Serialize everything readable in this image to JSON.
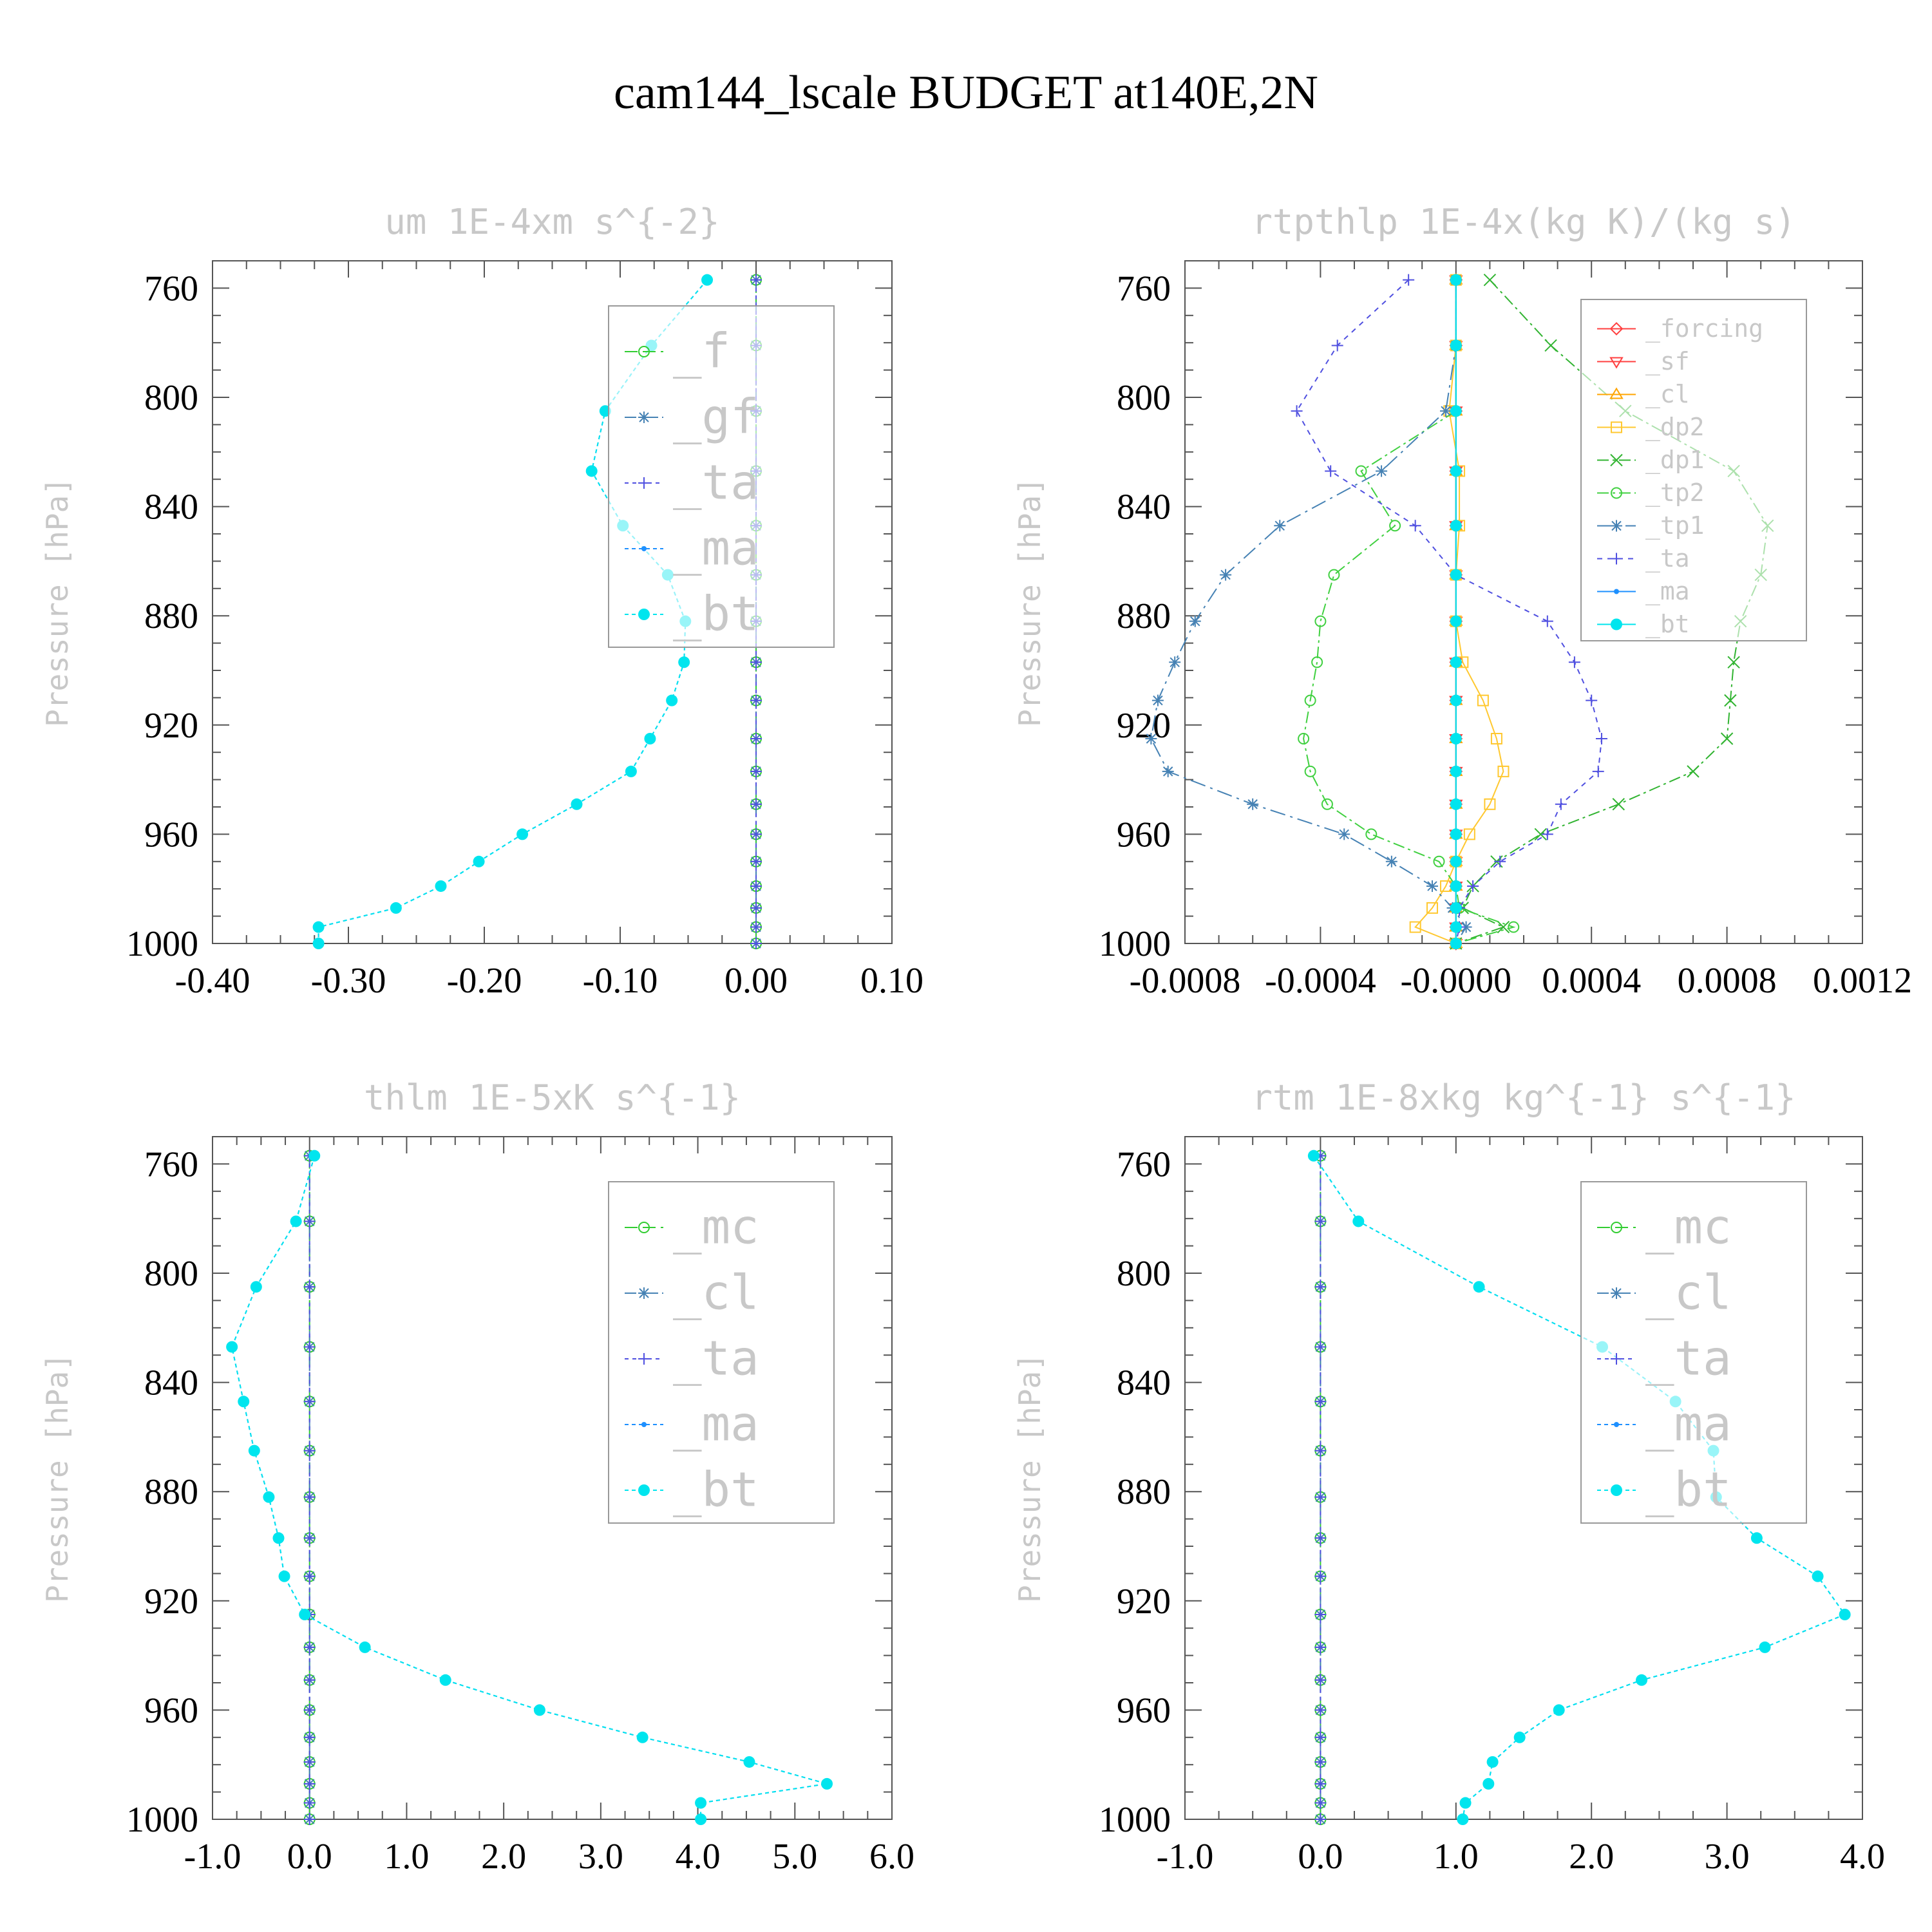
{
  "title": "cam144_lscale  BUDGET at140E,2N",
  "chart_data": [
    {
      "type": "line",
      "title": "um  1E-4xm s^{-2}",
      "ylabel": "Pressure [hPa]",
      "xlim": [
        -0.4,
        0.1
      ],
      "ylim": [
        1000,
        750
      ],
      "xticks": [
        "-0.40",
        "-0.30",
        "-0.20",
        "-0.10",
        "0.00",
        "0.10"
      ],
      "xtick_values": [
        -0.4,
        -0.3,
        -0.2,
        -0.1,
        0.0,
        0.1
      ],
      "yticks": [
        "760",
        "800",
        "840",
        "880",
        "920",
        "960",
        "1000"
      ],
      "legend": "top-right",
      "levels": [
        757,
        781,
        805,
        827,
        847,
        865,
        882,
        897,
        911,
        925,
        937,
        949,
        960,
        970,
        979,
        987,
        994,
        1000
      ],
      "series": [
        {
          "name": "_f",
          "color": "#32cd32",
          "marker": "circle-open",
          "dash": "20 8",
          "values": [
            0,
            0,
            0,
            0,
            0,
            0,
            0,
            0,
            0,
            0,
            0,
            0,
            0,
            0,
            0,
            0,
            0,
            0
          ]
        },
        {
          "name": "_gf",
          "color": "#4682b4",
          "marker": "star",
          "dash": "18 6 4 6",
          "values": [
            0,
            0,
            0,
            0,
            0,
            0,
            0,
            0,
            0,
            0,
            0,
            0,
            0,
            0,
            0,
            0,
            0,
            0
          ]
        },
        {
          "name": "_ta",
          "color": "#5050e0",
          "marker": "plus",
          "dash": "6 6",
          "values": [
            0,
            0,
            0,
            0,
            0,
            0,
            0,
            0,
            0,
            0,
            0,
            0,
            0,
            0,
            0,
            0,
            0,
            0.0
          ]
        },
        {
          "name": "_ma",
          "color": "#1e90ff",
          "marker": "dot",
          "dash": "6 5",
          "values": [
            -0.036,
            -0.077,
            -0.111,
            -0.121,
            -0.098,
            -0.065,
            -0.052,
            -0.053,
            -0.062,
            -0.078,
            -0.092,
            -0.132,
            -0.172,
            -0.204,
            -0.232,
            -0.265,
            -0.322,
            -0.322
          ]
        },
        {
          "name": "_bt",
          "color": "#00e5ee",
          "marker": "filled",
          "dash": "6 5",
          "values": [
            -0.036,
            -0.077,
            -0.111,
            -0.121,
            -0.098,
            -0.065,
            -0.052,
            -0.053,
            -0.062,
            -0.078,
            -0.092,
            -0.132,
            -0.172,
            -0.204,
            -0.232,
            -0.265,
            -0.322,
            -0.322
          ]
        }
      ]
    },
    {
      "type": "line",
      "title": "rtpthlp  1E-4x(kg K)/(kg s)",
      "ylabel": "Pressure [hPa]",
      "xlim": [
        -0.0008,
        0.0012
      ],
      "ylim": [
        1000,
        750
      ],
      "xticks": [
        "-0.0008",
        "-0.0004",
        "-0.0000",
        "0.0004",
        "0.0008",
        "0.0012"
      ],
      "xtick_values": [
        -0.0008,
        -0.0004,
        0.0,
        0.0004,
        0.0008,
        0.0012
      ],
      "yticks": [
        "760",
        "800",
        "840",
        "880",
        "920",
        "960",
        "1000"
      ],
      "legend": "top-right",
      "levels": [
        757,
        781,
        805,
        827,
        847,
        865,
        882,
        897,
        911,
        925,
        937,
        949,
        960,
        970,
        979,
        987,
        994,
        1000
      ],
      "series": [
        {
          "name": "_forcing",
          "color": "#ff4040",
          "marker": "diamond",
          "dash": "",
          "values": [
            0,
            0,
            0,
            0,
            0,
            0,
            0,
            0,
            0,
            0,
            0,
            0,
            0,
            0,
            0,
            0,
            0,
            0
          ]
        },
        {
          "name": "_sf",
          "color": "#ff4040",
          "marker": "triangle-down",
          "dash": "",
          "values": [
            0,
            0,
            0,
            0,
            0,
            0,
            0,
            0,
            0,
            0,
            0,
            0,
            0,
            0,
            0,
            0,
            0,
            0
          ]
        },
        {
          "name": "_cl",
          "color": "#ffa500",
          "marker": "triangle-up",
          "dash": "",
          "values": [
            0,
            0,
            0,
            0,
            0,
            0,
            0,
            0,
            0,
            0,
            0,
            0,
            0,
            0,
            0,
            0,
            0,
            0
          ]
        },
        {
          "name": "_dp2",
          "color": "#ffc830",
          "marker": "square",
          "dash": "",
          "values": [
            0,
            0,
            -2e-05,
            1e-05,
            1e-05,
            0,
            0,
            2e-05,
            8e-05,
            0.00012,
            0.00014,
            0.0001,
            4e-05,
            0,
            -3e-05,
            -7e-05,
            -0.00012,
            0
          ]
        },
        {
          "name": "_dp1",
          "color": "#32b432",
          "marker": "cross",
          "dash": "18 6 4 6",
          "values": [
            0.0001,
            0.00028,
            0.0005,
            0.00082,
            0.00092,
            0.0009,
            0.00084,
            0.00082,
            0.00081,
            0.0008,
            0.0007,
            0.00048,
            0.00025,
            0.00012,
            5e-05,
            2e-05,
            0.00014,
            0
          ]
        },
        {
          "name": "_tp2",
          "color": "#40d040",
          "marker": "circle-open",
          "dash": "18 6 4 6",
          "values": [
            0,
            0,
            0,
            -0.00028,
            -0.00018,
            -0.00036,
            -0.0004,
            -0.00041,
            -0.00043,
            -0.00045,
            -0.00043,
            -0.00038,
            -0.00025,
            -5e-05,
            0,
            1e-05,
            0.00017,
            0
          ]
        },
        {
          "name": "_tp1",
          "color": "#4682b4",
          "marker": "star",
          "dash": "24 8 4 8",
          "values": [
            0,
            0,
            -3e-05,
            -0.00022,
            -0.00052,
            -0.00068,
            -0.00077,
            -0.00083,
            -0.00088,
            -0.0009,
            -0.00085,
            -0.0006,
            -0.00033,
            -0.00019,
            -7e-05,
            -1e-05,
            3e-05,
            0
          ]
        },
        {
          "name": "_ta",
          "color": "#5050e0",
          "marker": "plus",
          "dash": "8 8",
          "values": [
            -0.00014,
            -0.00035,
            -0.00047,
            -0.00037,
            -0.00012,
            0,
            0.00027,
            0.00035,
            0.0004,
            0.00043,
            0.00042,
            0.00031,
            0.00027,
            0.00013,
            5e-05,
            1e-05,
            1e-05,
            0
          ]
        },
        {
          "name": "_ma",
          "color": "#1e90ff",
          "marker": "dot",
          "dash": "",
          "values": [
            0,
            0,
            0,
            0,
            0,
            0,
            0,
            0,
            0,
            0,
            0,
            0,
            0,
            0,
            0,
            0,
            0,
            0
          ]
        },
        {
          "name": "_bt",
          "color": "#00e5ee",
          "marker": "filled",
          "dash": "",
          "values": [
            0,
            0,
            0,
            0,
            0,
            0,
            0,
            0,
            0,
            0,
            0,
            0,
            0,
            0,
            0,
            0,
            0,
            0
          ]
        }
      ]
    },
    {
      "type": "line",
      "title": "thlm  1E-5xK s^{-1}",
      "ylabel": "Pressure [hPa]",
      "xlim": [
        -1.0,
        6.0
      ],
      "ylim": [
        1000,
        750
      ],
      "xticks": [
        "-1.0",
        "0.0",
        "1.0",
        "2.0",
        "3.0",
        "4.0",
        "5.0",
        "6.0"
      ],
      "xtick_values": [
        -1,
        0,
        1,
        2,
        3,
        4,
        5,
        6
      ],
      "yticks": [
        "760",
        "800",
        "840",
        "880",
        "920",
        "960",
        "1000"
      ],
      "legend": "top-right",
      "levels": [
        757,
        781,
        805,
        827,
        847,
        865,
        882,
        897,
        911,
        925,
        937,
        949,
        960,
        970,
        979,
        987,
        994,
        1000
      ],
      "series": [
        {
          "name": "_mc",
          "color": "#32cd32",
          "marker": "circle-open",
          "dash": "20 8",
          "values": [
            0,
            0,
            0,
            0,
            0,
            0,
            0,
            0,
            0,
            0,
            0,
            0,
            0,
            0,
            0,
            0,
            0,
            0
          ]
        },
        {
          "name": "_cl",
          "color": "#4682b4",
          "marker": "star",
          "dash": "18 6 4 6",
          "values": [
            0,
            0,
            0,
            0,
            0,
            0,
            0,
            0,
            0,
            0,
            0,
            0,
            0,
            0,
            0,
            0,
            0,
            0
          ]
        },
        {
          "name": "_ta",
          "color": "#5050e0",
          "marker": "plus",
          "dash": "6 6",
          "values": [
            0,
            0,
            0,
            0,
            0,
            0,
            0,
            0,
            0,
            0,
            0,
            0,
            0,
            0,
            0,
            0,
            0,
            0
          ]
        },
        {
          "name": "_ma",
          "color": "#1e90ff",
          "marker": "dot",
          "dash": "6 5",
          "values": [
            0.05,
            -0.14,
            -0.55,
            -0.8,
            -0.68,
            -0.57,
            -0.42,
            -0.32,
            -0.26,
            -0.05,
            0.57,
            1.4,
            2.37,
            3.43,
            4.53,
            5.33,
            4.03,
            4.03
          ]
        },
        {
          "name": "_bt",
          "color": "#00e5ee",
          "marker": "filled",
          "dash": "6 5",
          "values": [
            0.05,
            -0.14,
            -0.55,
            -0.8,
            -0.68,
            -0.57,
            -0.42,
            -0.32,
            -0.26,
            -0.05,
            0.57,
            1.4,
            2.37,
            3.43,
            4.53,
            5.33,
            4.03,
            4.03
          ]
        }
      ]
    },
    {
      "type": "line",
      "title": "rtm  1E-8xkg kg^{-1} s^{-1}",
      "ylabel": "Pressure [hPa]",
      "xlim": [
        -1.0,
        4.0
      ],
      "ylim": [
        1000,
        750
      ],
      "xticks": [
        "-1.0",
        "0.0",
        "1.0",
        "2.0",
        "3.0",
        "4.0"
      ],
      "xtick_values": [
        -1,
        0,
        1,
        2,
        3,
        4
      ],
      "yticks": [
        "760",
        "800",
        "840",
        "880",
        "920",
        "960",
        "1000"
      ],
      "legend": "top-right",
      "levels": [
        757,
        781,
        805,
        827,
        847,
        865,
        882,
        897,
        911,
        925,
        937,
        949,
        960,
        970,
        979,
        987,
        994,
        1000
      ],
      "series": [
        {
          "name": "_mc",
          "color": "#32cd32",
          "marker": "circle-open",
          "dash": "20 8",
          "values": [
            0,
            0,
            0,
            0,
            0,
            0,
            0,
            0,
            0,
            0,
            0,
            0,
            0,
            0,
            0,
            0,
            0,
            0
          ]
        },
        {
          "name": "_cl",
          "color": "#4682b4",
          "marker": "star",
          "dash": "18 6 4 6",
          "values": [
            0,
            0,
            0,
            0,
            0,
            0,
            0,
            0,
            0,
            0,
            0,
            0,
            0,
            0,
            0,
            0,
            0,
            0
          ]
        },
        {
          "name": "_ta",
          "color": "#5050e0",
          "marker": "plus",
          "dash": "6 6",
          "values": [
            0,
            0,
            0,
            0,
            0,
            0,
            0,
            0,
            0,
            0,
            0,
            0,
            0,
            0,
            0,
            0,
            0,
            0
          ]
        },
        {
          "name": "_ma",
          "color": "#1e90ff",
          "marker": "dot",
          "dash": "6 5",
          "values": [
            -0.05,
            0.28,
            1.17,
            2.08,
            2.62,
            2.9,
            2.92,
            3.22,
            3.67,
            3.87,
            3.28,
            2.37,
            1.76,
            1.47,
            1.27,
            1.24,
            1.07,
            1.05
          ]
        },
        {
          "name": "_bt",
          "color": "#00e5ee",
          "marker": "filled",
          "dash": "6 5",
          "values": [
            -0.05,
            0.28,
            1.17,
            2.08,
            2.62,
            2.9,
            2.92,
            3.22,
            3.67,
            3.87,
            3.28,
            2.37,
            1.76,
            1.47,
            1.27,
            1.24,
            1.07,
            1.05
          ]
        }
      ]
    }
  ]
}
